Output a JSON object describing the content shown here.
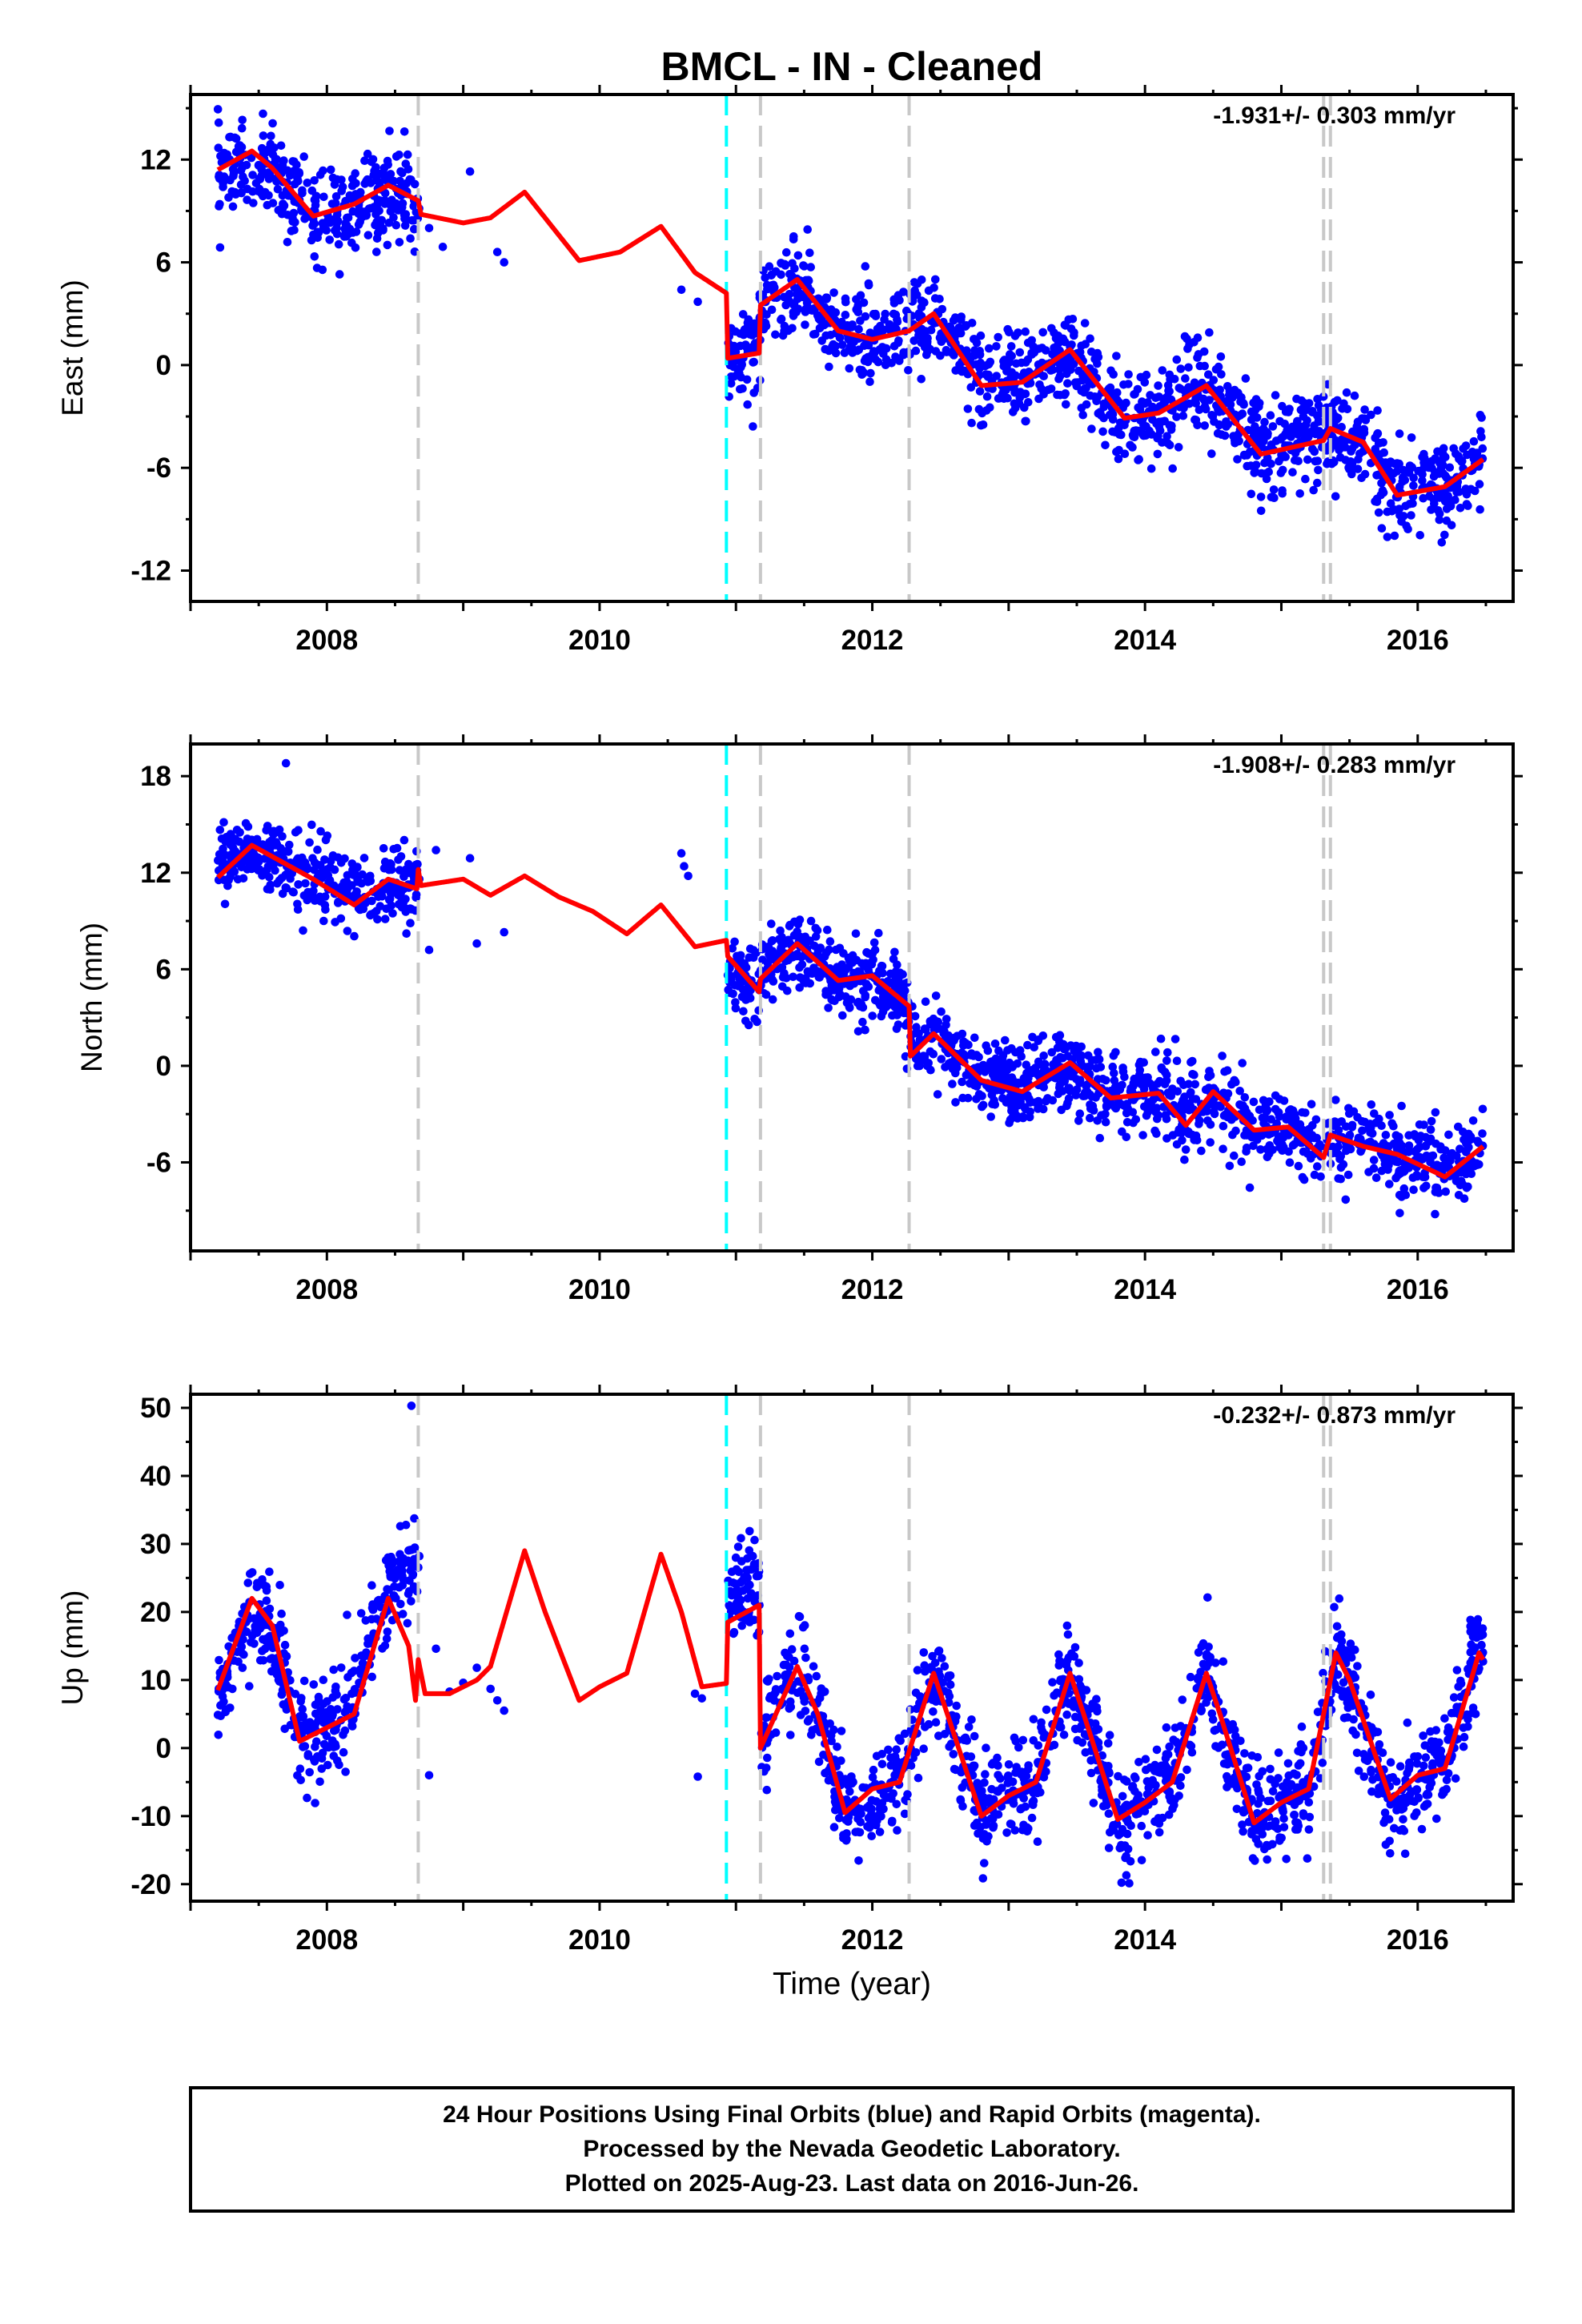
{
  "title": "BMCL  - IN - Cleaned",
  "x_axis_label": "Time (year)",
  "footer": {
    "line1": "24 Hour Positions Using Final Orbits (blue) and Rapid Orbits (magenta).",
    "line2": "Processed by the Nevada Geodetic Laboratory.",
    "line3": "Plotted on 2025-Aug-23. Last data on 2016-Jun-26."
  },
  "colors": {
    "final_orbits": "#0000ff",
    "model": "#ff0000",
    "equipment_change": "#c8c8c8",
    "earthquake": "#00ffff"
  },
  "chart_data": [
    {
      "type": "scatter",
      "component": "East",
      "ylabel": "East (mm)",
      "rate_text": "-1.931+/- 0.303 mm/yr",
      "xlim": [
        2007.0,
        2016.7
      ],
      "ylim": [
        -13.8,
        15.8
      ],
      "x_ticks": [
        "2008",
        "2010",
        "2012",
        "2014",
        "2016"
      ],
      "y_ticks": [
        "12",
        "6",
        "0",
        "-6",
        "-12"
      ],
      "gray_dashed_lines_year": [
        2008.67,
        2011.18,
        2012.27,
        2015.31,
        2015.36
      ],
      "cyan_dashed_lines_year": [
        2010.93
      ],
      "model_knots": [
        [
          2007.2,
          11.4
        ],
        [
          2007.45,
          12.5
        ],
        [
          2007.6,
          11.5
        ],
        [
          2007.9,
          8.7
        ],
        [
          2008.2,
          9.4
        ],
        [
          2008.45,
          10.5
        ],
        [
          2008.67,
          9.6
        ],
        [
          2008.69,
          8.8
        ],
        [
          2009.0,
          8.3
        ],
        [
          2009.2,
          8.6
        ],
        [
          2009.45,
          10.1
        ],
        [
          2009.85,
          6.1
        ],
        [
          2010.15,
          6.6
        ],
        [
          2010.45,
          8.1
        ],
        [
          2010.7,
          5.4
        ],
        [
          2010.93,
          4.2
        ],
        [
          2010.94,
          0.4
        ],
        [
          2011.17,
          0.7
        ],
        [
          2011.18,
          3.5
        ],
        [
          2011.45,
          5.0
        ],
        [
          2011.75,
          2.0
        ],
        [
          2012.0,
          1.5
        ],
        [
          2012.27,
          2.0
        ],
        [
          2012.45,
          3.0
        ],
        [
          2012.8,
          -1.2
        ],
        [
          2013.1,
          -1.0
        ],
        [
          2013.45,
          0.9
        ],
        [
          2013.85,
          -3.1
        ],
        [
          2014.1,
          -2.8
        ],
        [
          2014.45,
          -1.2
        ],
        [
          2014.85,
          -5.2
        ],
        [
          2015.31,
          -4.4
        ],
        [
          2015.36,
          -3.7
        ],
        [
          2015.6,
          -4.5
        ],
        [
          2015.85,
          -7.6
        ],
        [
          2016.2,
          -7.1
        ],
        [
          2016.48,
          -5.5
        ]
      ],
      "scatter_envelope": [
        [
          2007.2,
          11.4
        ],
        [
          2007.6,
          11.2
        ],
        [
          2007.9,
          8.8
        ],
        [
          2008.2,
          9.2
        ],
        [
          2008.5,
          10.2
        ],
        [
          2008.68,
          9.4
        ],
        [
          2010.94,
          0.5
        ],
        [
          2011.17,
          0.8
        ],
        [
          2011.18,
          3.6
        ],
        [
          2011.45,
          4.6
        ],
        [
          2011.75,
          1.9
        ],
        [
          2012.0,
          1.6
        ],
        [
          2012.3,
          2.2
        ],
        [
          2012.45,
          2.7
        ],
        [
          2012.8,
          -1.0
        ],
        [
          2013.1,
          -1.0
        ],
        [
          2013.45,
          0.6
        ],
        [
          2013.85,
          -3.3
        ],
        [
          2014.1,
          -2.9
        ],
        [
          2014.45,
          -1.0
        ],
        [
          2014.85,
          -4.8
        ],
        [
          2015.3,
          -4.1
        ],
        [
          2015.6,
          -4.6
        ],
        [
          2015.85,
          -7.4
        ],
        [
          2016.2,
          -7.0
        ],
        [
          2016.48,
          -5.6
        ]
      ],
      "scatter_noise_mm": 1.3,
      "gap_points": [
        [
          2008.75,
          8.0
        ],
        [
          2008.85,
          6.9
        ],
        [
          2009.05,
          11.3
        ],
        [
          2009.25,
          6.6
        ],
        [
          2009.3,
          6.0
        ],
        [
          2010.6,
          4.4
        ],
        [
          2010.72,
          3.7
        ]
      ]
    },
    {
      "type": "scatter",
      "component": "North",
      "ylabel": "North (mm)",
      "rate_text": "-1.908+/- 0.283 mm/yr",
      "xlim": [
        2007.0,
        2016.7
      ],
      "ylim": [
        -11.5,
        20.0
      ],
      "x_ticks": [
        "2008",
        "2010",
        "2012",
        "2014",
        "2016"
      ],
      "y_ticks": [
        "18",
        "12",
        "6",
        "0",
        "-6"
      ],
      "gray_dashed_lines_year": [
        2008.67,
        2011.18,
        2012.27,
        2015.31,
        2015.36
      ],
      "cyan_dashed_lines_year": [
        2010.93
      ],
      "model_knots": [
        [
          2007.2,
          11.7
        ],
        [
          2007.45,
          13.7
        ],
        [
          2007.6,
          13.0
        ],
        [
          2007.9,
          11.6
        ],
        [
          2008.2,
          10.0
        ],
        [
          2008.45,
          11.6
        ],
        [
          2008.66,
          11.0
        ],
        [
          2008.67,
          12.2
        ],
        [
          2008.69,
          11.2
        ],
        [
          2009.0,
          11.6
        ],
        [
          2009.2,
          10.6
        ],
        [
          2009.45,
          11.8
        ],
        [
          2009.7,
          10.5
        ],
        [
          2009.95,
          9.6
        ],
        [
          2010.2,
          8.2
        ],
        [
          2010.45,
          10.0
        ],
        [
          2010.7,
          7.4
        ],
        [
          2010.93,
          7.8
        ],
        [
          2010.94,
          6.8
        ],
        [
          2011.17,
          4.6
        ],
        [
          2011.18,
          5.4
        ],
        [
          2011.45,
          7.6
        ],
        [
          2011.75,
          5.3
        ],
        [
          2012.0,
          5.6
        ],
        [
          2012.27,
          3.7
        ],
        [
          2012.28,
          0.6
        ],
        [
          2012.45,
          2.0
        ],
        [
          2012.8,
          -0.9
        ],
        [
          2013.1,
          -1.6
        ],
        [
          2013.45,
          0.2
        ],
        [
          2013.75,
          -2.0
        ],
        [
          2014.1,
          -1.7
        ],
        [
          2014.3,
          -3.7
        ],
        [
          2014.5,
          -1.6
        ],
        [
          2014.8,
          -4.0
        ],
        [
          2015.05,
          -3.8
        ],
        [
          2015.31,
          -5.7
        ],
        [
          2015.36,
          -4.3
        ],
        [
          2015.6,
          -5.0
        ],
        [
          2015.85,
          -5.5
        ],
        [
          2016.2,
          -6.9
        ],
        [
          2016.48,
          -5.0
        ]
      ],
      "scatter_envelope": [
        [
          2007.2,
          13.0
        ],
        [
          2007.55,
          12.8
        ],
        [
          2007.9,
          11.8
        ],
        [
          2008.2,
          10.6
        ],
        [
          2008.5,
          11.0
        ],
        [
          2008.68,
          11.0
        ],
        [
          2010.94,
          6.2
        ],
        [
          2011.17,
          4.8
        ],
        [
          2011.18,
          5.6
        ],
        [
          2011.45,
          7.4
        ],
        [
          2011.75,
          5.4
        ],
        [
          2012.0,
          5.2
        ],
        [
          2012.27,
          3.8
        ],
        [
          2012.28,
          1.2
        ],
        [
          2012.45,
          1.6
        ],
        [
          2012.8,
          -0.6
        ],
        [
          2013.1,
          -1.2
        ],
        [
          2013.45,
          -0.2
        ],
        [
          2013.75,
          -1.9
        ],
        [
          2014.1,
          -2.0
        ],
        [
          2014.3,
          -3.0
        ],
        [
          2014.5,
          -1.8
        ],
        [
          2014.8,
          -3.8
        ],
        [
          2015.05,
          -4.0
        ],
        [
          2015.31,
          -5.0
        ],
        [
          2015.6,
          -4.4
        ],
        [
          2015.85,
          -5.4
        ],
        [
          2016.2,
          -6.2
        ],
        [
          2016.48,
          -5.2
        ]
      ],
      "scatter_noise_mm": 1.2,
      "gap_points": [
        [
          2007.7,
          18.8
        ],
        [
          2008.75,
          7.2
        ],
        [
          2008.8,
          13.4
        ],
        [
          2009.05,
          12.9
        ],
        [
          2009.1,
          7.6
        ],
        [
          2009.3,
          8.3
        ],
        [
          2010.6,
          13.2
        ],
        [
          2010.62,
          12.4
        ],
        [
          2010.65,
          11.8
        ]
      ]
    },
    {
      "type": "scatter",
      "component": "Up",
      "ylabel": "Up (mm)",
      "rate_text": "-0.232+/- 0.873 mm/yr",
      "xlim": [
        2007.0,
        2016.7
      ],
      "ylim": [
        -22.5,
        52.0
      ],
      "x_ticks": [
        "2008",
        "2010",
        "2012",
        "2014",
        "2016"
      ],
      "y_ticks": [
        "50",
        "40",
        "30",
        "20",
        "10",
        "0",
        "-10",
        "-20"
      ],
      "gray_dashed_lines_year": [
        2008.67,
        2011.18,
        2012.27,
        2015.31,
        2015.36
      ],
      "cyan_dashed_lines_year": [
        2010.93
      ],
      "model_knots": [
        [
          2007.2,
          8.5
        ],
        [
          2007.45,
          22.0
        ],
        [
          2007.6,
          18.0
        ],
        [
          2007.8,
          1.0
        ],
        [
          2008.0,
          3.0
        ],
        [
          2008.2,
          5.0
        ],
        [
          2008.45,
          22.0
        ],
        [
          2008.6,
          15.0
        ],
        [
          2008.65,
          7.0
        ],
        [
          2008.67,
          13.0
        ],
        [
          2008.72,
          8.0
        ],
        [
          2008.9,
          8.0
        ],
        [
          2009.1,
          10.0
        ],
        [
          2009.2,
          12.0
        ],
        [
          2009.45,
          29.0
        ],
        [
          2009.6,
          20.0
        ],
        [
          2009.85,
          7.0
        ],
        [
          2010.0,
          9.0
        ],
        [
          2010.2,
          11.0
        ],
        [
          2010.45,
          28.5
        ],
        [
          2010.6,
          20.0
        ],
        [
          2010.75,
          9.0
        ],
        [
          2010.93,
          9.5
        ],
        [
          2010.94,
          18.5
        ],
        [
          2011.17,
          21.0
        ],
        [
          2011.18,
          0.0
        ],
        [
          2011.45,
          12.0
        ],
        [
          2011.6,
          5.0
        ],
        [
          2011.8,
          -9.5
        ],
        [
          2012.0,
          -6.0
        ],
        [
          2012.2,
          -5.0
        ],
        [
          2012.45,
          11.0
        ],
        [
          2012.55,
          5.0
        ],
        [
          2012.8,
          -10.0
        ],
        [
          2013.0,
          -7.0
        ],
        [
          2013.2,
          -5.0
        ],
        [
          2013.45,
          11.0
        ],
        [
          2013.55,
          5.0
        ],
        [
          2013.8,
          -10.5
        ],
        [
          2014.0,
          -8.0
        ],
        [
          2014.2,
          -5.0
        ],
        [
          2014.45,
          11.0
        ],
        [
          2014.55,
          5.0
        ],
        [
          2014.8,
          -11.0
        ],
        [
          2015.0,
          -8.0
        ],
        [
          2015.2,
          -6.0
        ],
        [
          2015.4,
          14.0
        ],
        [
          2015.5,
          10.0
        ],
        [
          2015.8,
          -7.5
        ],
        [
          2016.0,
          -4.0
        ],
        [
          2016.2,
          -3.0
        ],
        [
          2016.45,
          14.0
        ],
        [
          2016.48,
          13.0
        ]
      ],
      "scatter_envelope": [
        [
          2007.2,
          6.5
        ],
        [
          2007.45,
          21.5
        ],
        [
          2007.6,
          16.5
        ],
        [
          2007.8,
          0.5
        ],
        [
          2008.0,
          3.0
        ],
        [
          2008.2,
          7.0
        ],
        [
          2008.45,
          24.0
        ],
        [
          2008.66,
          28.0
        ],
        [
          2010.94,
          22.0
        ],
        [
          2011.17,
          24.0
        ],
        [
          2011.18,
          1.0
        ],
        [
          2011.45,
          13.0
        ],
        [
          2011.6,
          5.0
        ],
        [
          2011.8,
          -9.5
        ],
        [
          2012.0,
          -7.0
        ],
        [
          2012.2,
          -5.0
        ],
        [
          2012.45,
          12.0
        ],
        [
          2012.55,
          6.0
        ],
        [
          2012.8,
          -9.5
        ],
        [
          2013.0,
          -7.0
        ],
        [
          2013.2,
          -5.0
        ],
        [
          2013.45,
          11.0
        ],
        [
          2013.55,
          5.0
        ],
        [
          2013.8,
          -11.0
        ],
        [
          2014.0,
          -8.5
        ],
        [
          2014.2,
          -5.0
        ],
        [
          2014.45,
          12.0
        ],
        [
          2014.55,
          5.0
        ],
        [
          2014.8,
          -11.0
        ],
        [
          2015.0,
          -8.5
        ],
        [
          2015.2,
          -5.5
        ],
        [
          2015.4,
          13.0
        ],
        [
          2015.5,
          9.0
        ],
        [
          2015.8,
          -8.0
        ],
        [
          2016.0,
          -5.0
        ],
        [
          2016.2,
          -2.0
        ],
        [
          2016.48,
          17.0
        ]
      ],
      "scatter_noise_mm": 3.6,
      "gap_points": [
        [
          2008.62,
          50.3
        ],
        [
          2008.75,
          -4.0
        ],
        [
          2008.8,
          14.6
        ],
        [
          2008.9,
          8.3
        ],
        [
          2009.0,
          9.6
        ],
        [
          2009.1,
          11.8
        ],
        [
          2009.2,
          8.7
        ],
        [
          2009.25,
          7.0
        ],
        [
          2009.3,
          5.5
        ],
        [
          2010.7,
          8.0
        ],
        [
          2010.72,
          -4.2
        ],
        [
          2010.75,
          7.3
        ]
      ]
    }
  ]
}
